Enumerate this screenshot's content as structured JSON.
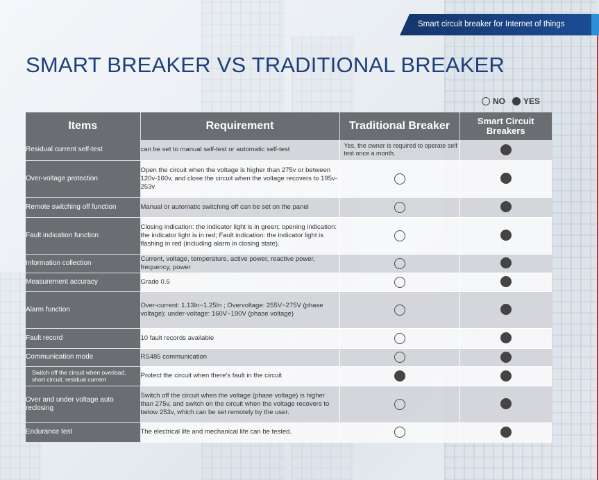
{
  "header": {
    "banner": "Smart circuit breaker for Internet of things",
    "title": "SMART BREAKER VS TRADITIONAL BREAKER"
  },
  "legend": {
    "no_label": "NO",
    "yes_label": "YES"
  },
  "table": {
    "headers": {
      "items": "Items",
      "requirement": "Requirement",
      "traditional": "Traditional Breaker",
      "smart": "Smart Circuit Breakers"
    },
    "rows": [
      {
        "item": "Residual current  self-test",
        "requirement": "can be set to manual self-test or automatic self-test",
        "traditional_text": "Yes, the owner is required to operate self test once a month.",
        "smart": "yes"
      },
      {
        "item": "Over-voltage protection",
        "requirement": "Open the circuit when the voltage is higher than 275v or between 120v-160v, and close the circuit when the voltage recovers to 195v-253v",
        "traditional": "no",
        "smart": "yes"
      },
      {
        "item": "Remote  switching off function",
        "requirement": "Manual or automatic switching off can be set  on the panel",
        "traditional": "no",
        "smart": "yes"
      },
      {
        "item": "Fault indication function",
        "requirement": "Closing indication: the indicator light is in green; opening indication: the indicator light is in red; Fault indication: the indicator light is flashing in red (including alarm in closing state).",
        "traditional": "no",
        "smart": "yes"
      },
      {
        "item": "Information collection",
        "requirement": "Current, voltage, temperature, active power, reactive power, frequency, power",
        "traditional": "no",
        "smart": "yes"
      },
      {
        "item": "Measurement accuracy",
        "requirement": "Grade 0.5",
        "traditional": "no",
        "smart": "yes"
      },
      {
        "item": "Alarm function",
        "requirement": "Over-current: 1.13In~1.25In ; Overvoltage: 255V~275V (phase voltage);   under-voltage: 160V~190V (phase voltage)",
        "traditional": "no",
        "smart": "yes"
      },
      {
        "item": "Fault record",
        "requirement": "10 fault records available",
        "traditional": "no",
        "smart": "yes"
      },
      {
        "item": "Communication mode",
        "requirement": "RS485 communication",
        "traditional": "no",
        "smart": "yes"
      },
      {
        "item": "Switch off the circuit when overload, short circuit, residual current",
        "requirement": "Protect the circuit when there's fault in the circuit",
        "traditional": "yes",
        "smart": "yes",
        "small": true
      },
      {
        "item": "Over and under voltage auto reclosing",
        "requirement": "Switch off the circuit when the voltage (phase voltage) is higher than 275v, and switch on the circuit when the voltage recovers to below 253v, which can be set remotely by the user.",
        "traditional": "no",
        "smart": "yes"
      },
      {
        "item": "Endurance test",
        "requirement": "The electrical life and mechanical life can be tested.",
        "traditional": "no",
        "smart": "yes"
      }
    ]
  }
}
